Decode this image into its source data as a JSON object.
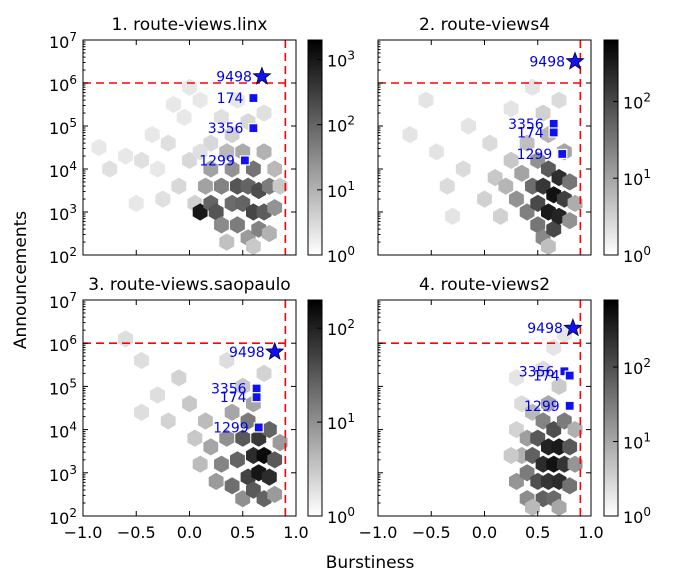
{
  "figure": {
    "ylabel": "Announcements",
    "xlabel": "Burstiness"
  },
  "colors": {
    "threshold_line": "#ff0000",
    "highlight_marker": "#1010f0",
    "label_text": "#0000ee",
    "colormap_low": "#ffffff",
    "colormap_high": "#000000"
  },
  "chart_data": [
    {
      "type": "heatmap",
      "title": "1. route-views.linx",
      "xlabel": "",
      "ylabel": "",
      "xlim": [
        -1.0,
        1.0
      ],
      "ylim_log10": [
        2,
        7
      ],
      "x_ticks": [
        "-1.0",
        "-0.5",
        "0.0",
        "0.5",
        "1.0"
      ],
      "y_ticks": [
        "2",
        "3",
        "4",
        "5",
        "6",
        "7"
      ],
      "colorbar": {
        "log10_range": [
          0,
          3.3
        ],
        "ticks": [
          {
            "label": "0",
            "v": 0
          },
          {
            "label": "1",
            "v": 1
          },
          {
            "label": "2",
            "v": 2
          },
          {
            "label": "3",
            "v": 3
          }
        ]
      },
      "threshold": {
        "x": 0.9,
        "log10_y": 6
      },
      "markers": [
        {
          "label": "9498",
          "x": 0.68,
          "log10_y": 6.15,
          "shape": "star"
        },
        {
          "label": "174",
          "x": 0.6,
          "log10_y": 5.65,
          "shape": "square"
        },
        {
          "label": "3356",
          "x": 0.6,
          "log10_y": 4.95,
          "shape": "square"
        },
        {
          "label": "1299",
          "x": 0.52,
          "log10_y": 4.2,
          "shape": "square"
        }
      ],
      "cells": [
        {
          "x": -0.85,
          "y": 4.5,
          "v": 0.3
        },
        {
          "x": -0.75,
          "y": 4.0,
          "v": 0.4
        },
        {
          "x": -0.6,
          "y": 4.3,
          "v": 0.3
        },
        {
          "x": -0.45,
          "y": 4.2,
          "v": 0.4
        },
        {
          "x": -0.35,
          "y": 4.8,
          "v": 0.3
        },
        {
          "x": -0.3,
          "y": 4.0,
          "v": 0.3
        },
        {
          "x": -0.2,
          "y": 4.6,
          "v": 0.4
        },
        {
          "x": -0.1,
          "y": 3.6,
          "v": 0.5
        },
        {
          "x": -0.05,
          "y": 5.2,
          "v": 0.3
        },
        {
          "x": 0.0,
          "y": 4.2,
          "v": 0.5
        },
        {
          "x": 0.05,
          "y": 3.2,
          "v": 0.6
        },
        {
          "x": 0.1,
          "y": 5.6,
          "v": 0.3
        },
        {
          "x": -0.5,
          "y": 3.2,
          "v": 0.3
        },
        {
          "x": -0.25,
          "y": 3.3,
          "v": 0.4
        },
        {
          "x": 0.0,
          "y": 5.9,
          "v": 0.3
        },
        {
          "x": 0.15,
          "y": 3.6,
          "v": 1.2
        },
        {
          "x": 0.1,
          "y": 3.0,
          "v": 3.0
        },
        {
          "x": 0.2,
          "y": 3.2,
          "v": 2.0
        },
        {
          "x": 0.2,
          "y": 4.0,
          "v": 1.2
        },
        {
          "x": 0.25,
          "y": 3.0,
          "v": 2.2
        },
        {
          "x": 0.3,
          "y": 3.6,
          "v": 1.6
        },
        {
          "x": 0.3,
          "y": 2.7,
          "v": 1.5
        },
        {
          "x": 0.35,
          "y": 4.4,
          "v": 0.9
        },
        {
          "x": 0.4,
          "y": 3.2,
          "v": 1.9
        },
        {
          "x": 0.4,
          "y": 4.0,
          "v": 1.4
        },
        {
          "x": 0.45,
          "y": 2.7,
          "v": 1.7
        },
        {
          "x": 0.45,
          "y": 3.6,
          "v": 2.2
        },
        {
          "x": 0.5,
          "y": 3.2,
          "v": 2.0
        },
        {
          "x": 0.5,
          "y": 4.4,
          "v": 1.1
        },
        {
          "x": 0.55,
          "y": 2.4,
          "v": 1.3
        },
        {
          "x": 0.55,
          "y": 3.6,
          "v": 2.0
        },
        {
          "x": 0.6,
          "y": 3.0,
          "v": 2.4
        },
        {
          "x": 0.6,
          "y": 4.0,
          "v": 1.8
        },
        {
          "x": 0.65,
          "y": 2.6,
          "v": 1.6
        },
        {
          "x": 0.65,
          "y": 3.5,
          "v": 2.3
        },
        {
          "x": 0.7,
          "y": 3.0,
          "v": 2.1
        },
        {
          "x": 0.7,
          "y": 4.4,
          "v": 1.0
        },
        {
          "x": 0.75,
          "y": 3.6,
          "v": 1.7
        },
        {
          "x": 0.75,
          "y": 2.5,
          "v": 1.0
        },
        {
          "x": 0.8,
          "y": 3.1,
          "v": 1.4
        },
        {
          "x": 0.8,
          "y": 4.0,
          "v": 0.9
        },
        {
          "x": 0.85,
          "y": 3.6,
          "v": 0.7
        },
        {
          "x": 0.4,
          "y": 4.8,
          "v": 0.6
        },
        {
          "x": 0.55,
          "y": 5.1,
          "v": 0.5
        },
        {
          "x": 0.7,
          "y": 5.3,
          "v": 0.4
        },
        {
          "x": 0.45,
          "y": 5.6,
          "v": 0.3
        },
        {
          "x": 0.3,
          "y": 5.2,
          "v": 0.4
        },
        {
          "x": 0.6,
          "y": 2.2,
          "v": 0.7
        },
        {
          "x": 0.35,
          "y": 2.3,
          "v": 0.8
        },
        {
          "x": 0.2,
          "y": 4.6,
          "v": 0.5
        },
        {
          "x": 0.1,
          "y": 4.4,
          "v": 0.4
        },
        {
          "x": -0.15,
          "y": 5.5,
          "v": 0.3
        }
      ]
    },
    {
      "type": "heatmap",
      "title": "2. route-views4",
      "xlabel": "",
      "ylabel": "",
      "xlim": [
        -1.0,
        1.0
      ],
      "ylim_log10": [
        2,
        7
      ],
      "x_ticks": [
        "-1.0",
        "-0.5",
        "0.0",
        "0.5",
        "1.0"
      ],
      "y_ticks": [
        "2",
        "3",
        "4",
        "5",
        "6",
        "7"
      ],
      "colorbar": {
        "log10_range": [
          0,
          2.8
        ],
        "ticks": [
          {
            "label": "0",
            "v": 0
          },
          {
            "label": "1",
            "v": 1
          },
          {
            "label": "2",
            "v": 2
          }
        ]
      },
      "threshold": {
        "x": 0.9,
        "log10_y": 6
      },
      "markers": [
        {
          "label": "9498",
          "x": 0.85,
          "log10_y": 6.5,
          "shape": "star"
        },
        {
          "label": "3356",
          "x": 0.65,
          "log10_y": 5.05,
          "shape": "square"
        },
        {
          "label": "174",
          "x": 0.65,
          "log10_y": 4.85,
          "shape": "square"
        },
        {
          "label": "1299",
          "x": 0.73,
          "log10_y": 4.35,
          "shape": "square"
        }
      ],
      "cells": [
        {
          "x": -0.7,
          "y": 4.8,
          "v": 0.3
        },
        {
          "x": -0.55,
          "y": 5.6,
          "v": 0.3
        },
        {
          "x": -0.45,
          "y": 4.4,
          "v": 0.3
        },
        {
          "x": -0.35,
          "y": 3.6,
          "v": 0.4
        },
        {
          "x": -0.2,
          "y": 4.0,
          "v": 0.4
        },
        {
          "x": -0.15,
          "y": 5.0,
          "v": 0.3
        },
        {
          "x": 0.0,
          "y": 3.3,
          "v": 0.5
        },
        {
          "x": 0.05,
          "y": 4.6,
          "v": 0.4
        },
        {
          "x": 0.1,
          "y": 3.8,
          "v": 0.6
        },
        {
          "x": 0.15,
          "y": 2.9,
          "v": 0.5
        },
        {
          "x": 0.2,
          "y": 3.6,
          "v": 0.8
        },
        {
          "x": 0.25,
          "y": 4.2,
          "v": 0.6
        },
        {
          "x": 0.3,
          "y": 3.3,
          "v": 1.2
        },
        {
          "x": 0.35,
          "y": 3.9,
          "v": 1.0
        },
        {
          "x": 0.4,
          "y": 3.0,
          "v": 1.4
        },
        {
          "x": 0.4,
          "y": 4.6,
          "v": 0.7
        },
        {
          "x": 0.45,
          "y": 3.6,
          "v": 1.6
        },
        {
          "x": 0.5,
          "y": 2.7,
          "v": 1.5
        },
        {
          "x": 0.5,
          "y": 3.2,
          "v": 2.0
        },
        {
          "x": 0.5,
          "y": 4.2,
          "v": 1.2
        },
        {
          "x": 0.55,
          "y": 3.6,
          "v": 2.2
        },
        {
          "x": 0.55,
          "y": 2.4,
          "v": 1.3
        },
        {
          "x": 0.6,
          "y": 3.0,
          "v": 2.5
        },
        {
          "x": 0.6,
          "y": 4.0,
          "v": 1.8
        },
        {
          "x": 0.65,
          "y": 3.4,
          "v": 2.6
        },
        {
          "x": 0.65,
          "y": 2.6,
          "v": 2.0
        },
        {
          "x": 0.7,
          "y": 3.8,
          "v": 2.3
        },
        {
          "x": 0.7,
          "y": 2.9,
          "v": 2.4
        },
        {
          "x": 0.75,
          "y": 3.3,
          "v": 2.1
        },
        {
          "x": 0.75,
          "y": 4.4,
          "v": 1.0
        },
        {
          "x": 0.8,
          "y": 3.7,
          "v": 1.5
        },
        {
          "x": 0.8,
          "y": 2.8,
          "v": 1.2
        },
        {
          "x": 0.85,
          "y": 3.2,
          "v": 0.9
        },
        {
          "x": 0.6,
          "y": 4.8,
          "v": 0.8
        },
        {
          "x": 0.55,
          "y": 5.3,
          "v": 0.5
        },
        {
          "x": 0.7,
          "y": 5.6,
          "v": 0.4
        },
        {
          "x": 0.45,
          "y": 5.9,
          "v": 0.3
        },
        {
          "x": 0.6,
          "y": 2.2,
          "v": 0.7
        },
        {
          "x": 0.25,
          "y": 5.4,
          "v": 0.3
        },
        {
          "x": -0.3,
          "y": 2.9,
          "v": 0.3
        }
      ]
    },
    {
      "type": "heatmap",
      "title": "3. route-views.saopaulo",
      "xlabel": "",
      "ylabel": "",
      "xlim": [
        -1.0,
        1.0
      ],
      "ylim_log10": [
        2,
        7
      ],
      "x_ticks": [
        "-1.0",
        "-0.5",
        "0.0",
        "0.5",
        "1.0"
      ],
      "y_ticks": [
        "2",
        "3",
        "4",
        "5",
        "6",
        "7"
      ],
      "colorbar": {
        "log10_range": [
          0,
          2.3
        ],
        "ticks": [
          {
            "label": "0",
            "v": 0
          },
          {
            "label": "1",
            "v": 1
          },
          {
            "label": "2",
            "v": 2
          }
        ]
      },
      "threshold": {
        "x": 0.9,
        "log10_y": 6
      },
      "markers": [
        {
          "label": "9498",
          "x": 0.8,
          "log10_y": 5.8,
          "shape": "star"
        },
        {
          "label": "3356",
          "x": 0.63,
          "log10_y": 4.95,
          "shape": "square"
        },
        {
          "label": "174",
          "x": 0.63,
          "log10_y": 4.75,
          "shape": "square"
        },
        {
          "label": "1299",
          "x": 0.65,
          "log10_y": 4.05,
          "shape": "square"
        }
      ],
      "cells": [
        {
          "x": -0.6,
          "y": 6.1,
          "v": 0.3
        },
        {
          "x": -0.45,
          "y": 5.6,
          "v": 0.3
        },
        {
          "x": -0.3,
          "y": 4.8,
          "v": 0.3
        },
        {
          "x": -0.2,
          "y": 4.2,
          "v": 0.4
        },
        {
          "x": -0.1,
          "y": 5.2,
          "v": 0.4
        },
        {
          "x": 0.0,
          "y": 4.6,
          "v": 0.5
        },
        {
          "x": 0.05,
          "y": 3.8,
          "v": 0.5
        },
        {
          "x": 0.1,
          "y": 3.2,
          "v": 0.6
        },
        {
          "x": 0.15,
          "y": 4.2,
          "v": 0.6
        },
        {
          "x": 0.2,
          "y": 3.6,
          "v": 0.8
        },
        {
          "x": 0.25,
          "y": 2.8,
          "v": 0.9
        },
        {
          "x": 0.3,
          "y": 3.2,
          "v": 1.1
        },
        {
          "x": 0.35,
          "y": 3.8,
          "v": 1.0
        },
        {
          "x": 0.4,
          "y": 2.7,
          "v": 1.3
        },
        {
          "x": 0.4,
          "y": 4.4,
          "v": 0.8
        },
        {
          "x": 0.45,
          "y": 3.3,
          "v": 1.4
        },
        {
          "x": 0.5,
          "y": 2.4,
          "v": 1.0
        },
        {
          "x": 0.5,
          "y": 3.8,
          "v": 1.5
        },
        {
          "x": 0.55,
          "y": 2.9,
          "v": 1.7
        },
        {
          "x": 0.55,
          "y": 4.2,
          "v": 1.2
        },
        {
          "x": 0.6,
          "y": 3.4,
          "v": 1.9
        },
        {
          "x": 0.6,
          "y": 2.6,
          "v": 1.5
        },
        {
          "x": 0.65,
          "y": 3.0,
          "v": 2.1
        },
        {
          "x": 0.65,
          "y": 3.8,
          "v": 1.8
        },
        {
          "x": 0.7,
          "y": 3.4,
          "v": 2.2
        },
        {
          "x": 0.7,
          "y": 2.4,
          "v": 1.4
        },
        {
          "x": 0.75,
          "y": 2.9,
          "v": 1.9
        },
        {
          "x": 0.75,
          "y": 4.0,
          "v": 1.4
        },
        {
          "x": 0.8,
          "y": 3.3,
          "v": 1.5
        },
        {
          "x": 0.8,
          "y": 2.5,
          "v": 0.9
        },
        {
          "x": 0.85,
          "y": 3.7,
          "v": 0.9
        },
        {
          "x": 0.6,
          "y": 4.6,
          "v": 0.8
        },
        {
          "x": 0.5,
          "y": 5.0,
          "v": 0.5
        },
        {
          "x": 0.7,
          "y": 5.3,
          "v": 0.4
        },
        {
          "x": 0.35,
          "y": 5.6,
          "v": 0.3
        },
        {
          "x": -0.45,
          "y": 4.4,
          "v": 0.3
        }
      ]
    },
    {
      "type": "heatmap",
      "title": "4. route-views2",
      "xlabel": "",
      "ylabel": "",
      "xlim": [
        -1.0,
        1.0
      ],
      "ylim_log10": [
        2,
        7
      ],
      "x_ticks": [
        "-1.0",
        "-0.5",
        "0.0",
        "0.5",
        "1.0"
      ],
      "y_ticks": [
        "2",
        "3",
        "4",
        "5",
        "6",
        "7"
      ],
      "colorbar": {
        "log10_range": [
          0,
          2.9
        ],
        "ticks": [
          {
            "label": "0",
            "v": 0
          },
          {
            "label": "1",
            "v": 1
          },
          {
            "label": "2",
            "v": 2
          }
        ]
      },
      "threshold": {
        "x": 0.9,
        "log10_y": 6
      },
      "markers": [
        {
          "label": "9498",
          "x": 0.83,
          "log10_y": 6.35,
          "shape": "star"
        },
        {
          "label": "3356",
          "x": 0.75,
          "log10_y": 5.35,
          "shape": "square"
        },
        {
          "label": "174",
          "x": 0.8,
          "log10_y": 5.25,
          "shape": "square"
        },
        {
          "label": "1299",
          "x": 0.8,
          "log10_y": 4.55,
          "shape": "square"
        }
      ],
      "cells": [
        {
          "x": 0.3,
          "y": 5.2,
          "v": 0.3
        },
        {
          "x": 0.35,
          "y": 4.6,
          "v": 0.4
        },
        {
          "x": 0.3,
          "y": 4.0,
          "v": 0.5
        },
        {
          "x": 0.35,
          "y": 3.4,
          "v": 0.9
        },
        {
          "x": 0.3,
          "y": 2.8,
          "v": 1.2
        },
        {
          "x": 0.4,
          "y": 3.0,
          "v": 1.5
        },
        {
          "x": 0.4,
          "y": 3.8,
          "v": 1.1
        },
        {
          "x": 0.4,
          "y": 2.4,
          "v": 1.3
        },
        {
          "x": 0.45,
          "y": 3.4,
          "v": 1.8
        },
        {
          "x": 0.45,
          "y": 4.4,
          "v": 0.8
        },
        {
          "x": 0.5,
          "y": 2.8,
          "v": 2.0
        },
        {
          "x": 0.5,
          "y": 3.8,
          "v": 1.9
        },
        {
          "x": 0.55,
          "y": 3.2,
          "v": 2.4
        },
        {
          "x": 0.55,
          "y": 2.4,
          "v": 1.8
        },
        {
          "x": 0.55,
          "y": 4.2,
          "v": 1.4
        },
        {
          "x": 0.6,
          "y": 3.6,
          "v": 2.5
        },
        {
          "x": 0.6,
          "y": 2.8,
          "v": 2.3
        },
        {
          "x": 0.65,
          "y": 3.2,
          "v": 2.7
        },
        {
          "x": 0.65,
          "y": 4.0,
          "v": 2.0
        },
        {
          "x": 0.65,
          "y": 2.4,
          "v": 1.7
        },
        {
          "x": 0.7,
          "y": 3.6,
          "v": 2.6
        },
        {
          "x": 0.7,
          "y": 2.8,
          "v": 2.4
        },
        {
          "x": 0.75,
          "y": 3.2,
          "v": 2.3
        },
        {
          "x": 0.75,
          "y": 4.2,
          "v": 1.5
        },
        {
          "x": 0.8,
          "y": 3.6,
          "v": 1.9
        },
        {
          "x": 0.8,
          "y": 2.7,
          "v": 1.6
        },
        {
          "x": 0.85,
          "y": 3.2,
          "v": 1.2
        },
        {
          "x": 0.85,
          "y": 4.0,
          "v": 0.9
        },
        {
          "x": 0.6,
          "y": 4.6,
          "v": 1.0
        },
        {
          "x": 0.7,
          "y": 5.0,
          "v": 0.6
        },
        {
          "x": 0.55,
          "y": 5.4,
          "v": 0.4
        },
        {
          "x": 0.65,
          "y": 5.9,
          "v": 0.3
        },
        {
          "x": 0.75,
          "y": 6.2,
          "v": 0.3
        },
        {
          "x": 0.25,
          "y": 3.4,
          "v": 0.6
        },
        {
          "x": 0.45,
          "y": 2.2,
          "v": 0.8
        },
        {
          "x": 0.7,
          "y": 2.2,
          "v": 1.0
        }
      ]
    }
  ]
}
